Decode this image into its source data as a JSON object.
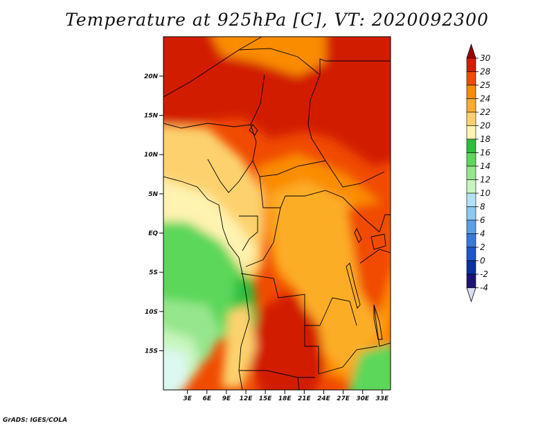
{
  "title": "Temperature at 925hPa [C], VT: 2020092300",
  "credit": "GrADS: IGES/COLA",
  "map": {
    "lat_ticks": [
      {
        "label": "20N",
        "lat": 20
      },
      {
        "label": "15N",
        "lat": 15
      },
      {
        "label": "10N",
        "lat": 10
      },
      {
        "label": "5N",
        "lat": 5
      },
      {
        "label": "EQ",
        "lat": 0
      },
      {
        "label": "5S",
        "lat": -5
      },
      {
        "label": "10S",
        "lat": -10
      },
      {
        "label": "15S",
        "lat": -15
      }
    ],
    "lon_ticks": [
      {
        "label": "3E",
        "lon": 3
      },
      {
        "label": "6E",
        "lon": 6
      },
      {
        "label": "9E",
        "lon": 9
      },
      {
        "label": "12E",
        "lon": 12
      },
      {
        "label": "15E",
        "lon": 15
      },
      {
        "label": "18E",
        "lon": 18
      },
      {
        "label": "21E",
        "lon": 21
      },
      {
        "label": "24E",
        "lon": 24
      },
      {
        "label": "27E",
        "lon": 27
      },
      {
        "label": "30E",
        "lon": 30
      },
      {
        "label": "33E",
        "lon": 33
      }
    ]
  },
  "colorbar": {
    "levels": [
      "30",
      "28",
      "25",
      "24",
      "22",
      "20",
      "18",
      "16",
      "14",
      "12",
      "10",
      "8",
      "6",
      "4",
      "2",
      "0",
      "-2",
      "-4"
    ],
    "colors": [
      "#a00000",
      "#d21e00",
      "#f04b00",
      "#fa8c00",
      "#fcad28",
      "#fdd26e",
      "#fef3b0",
      "#2dbe3c",
      "#5cd75a",
      "#96e68c",
      "#c8f5be",
      "#b4e1fa",
      "#8cc8f0",
      "#5aa0e6",
      "#3778dc",
      "#1e55c8",
      "#0a32a0",
      "#1e1478",
      "#dcdcf5"
    ]
  }
}
